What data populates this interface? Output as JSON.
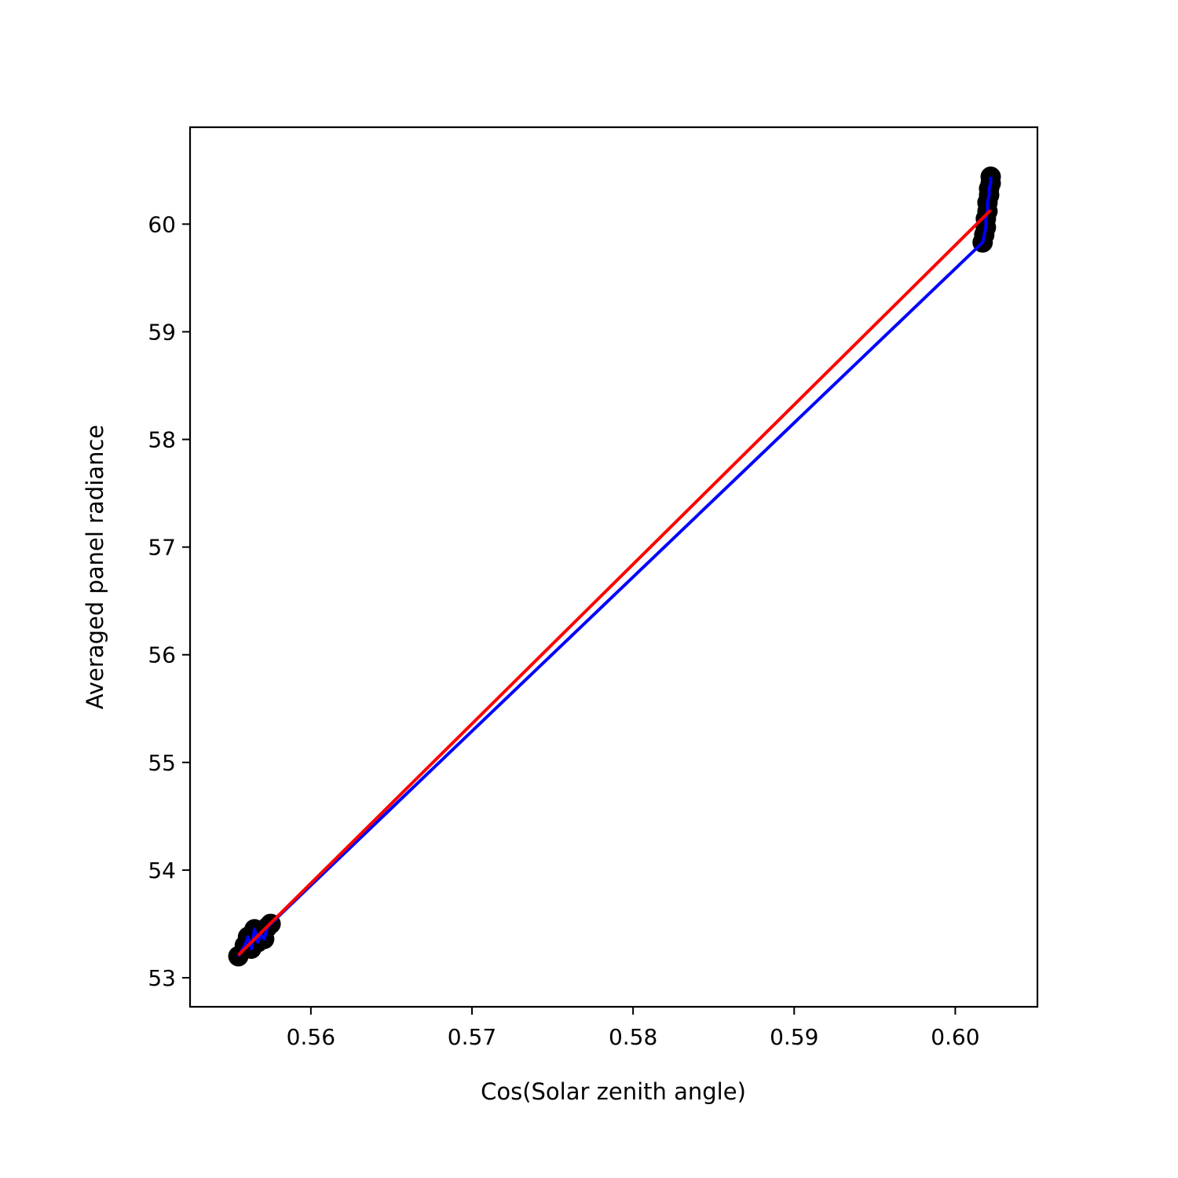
{
  "chart_data": {
    "type": "scatter",
    "title": "",
    "xlabel": "Cos(Solar zenith angle)",
    "ylabel": "Averaged panel radiance",
    "xlim": [
      0.5525,
      0.6051
    ],
    "ylim": [
      52.73,
      60.9
    ],
    "grid": false,
    "legend": "none",
    "x_ticks": [
      {
        "value": 0.56,
        "label": "0.56"
      },
      {
        "value": 0.57,
        "label": "0.57"
      },
      {
        "value": 0.58,
        "label": "0.58"
      },
      {
        "value": 0.59,
        "label": "0.59"
      },
      {
        "value": 0.6,
        "label": "0.60"
      }
    ],
    "y_ticks": [
      {
        "value": 53,
        "label": "53"
      },
      {
        "value": 54,
        "label": "54"
      },
      {
        "value": 55,
        "label": "55"
      },
      {
        "value": 56,
        "label": "56"
      },
      {
        "value": 57,
        "label": "57"
      },
      {
        "value": 58,
        "label": "58"
      },
      {
        "value": 59,
        "label": "59"
      },
      {
        "value": 60,
        "label": "60"
      }
    ],
    "points": {
      "color": "#000000",
      "x": [
        0.5555,
        0.5559,
        0.5561,
        0.5563,
        0.5565,
        0.5567,
        0.5569,
        0.5571,
        0.5573,
        0.5575,
        0.6017,
        0.6018,
        0.6019,
        0.6019,
        0.602,
        0.602,
        0.6021,
        0.6021,
        0.6022,
        0.6022
      ],
      "y": [
        53.2,
        53.3,
        53.38,
        53.27,
        53.45,
        53.33,
        53.4,
        53.36,
        53.47,
        53.5,
        59.83,
        59.9,
        59.97,
        60.05,
        60.12,
        60.2,
        60.27,
        60.33,
        60.38,
        60.44
      ]
    },
    "series": [
      {
        "color": "#0000ff",
        "x": [
          0.5555,
          0.5559,
          0.5561,
          0.5563,
          0.5565,
          0.5567,
          0.5569,
          0.5571,
          0.5573,
          0.5575,
          0.6017,
          0.6018,
          0.6019,
          0.6019,
          0.602,
          0.602,
          0.6021,
          0.6021,
          0.6022,
          0.6022
        ],
        "y": [
          53.2,
          53.3,
          53.38,
          53.27,
          53.45,
          53.33,
          53.4,
          53.36,
          53.47,
          53.5,
          59.83,
          59.9,
          59.97,
          60.05,
          60.12,
          60.2,
          60.27,
          60.33,
          60.38,
          60.44
        ]
      },
      {
        "color": "#ff0000",
        "x": [
          0.5555,
          0.6022
        ],
        "y": [
          53.21,
          60.13
        ]
      }
    ]
  }
}
